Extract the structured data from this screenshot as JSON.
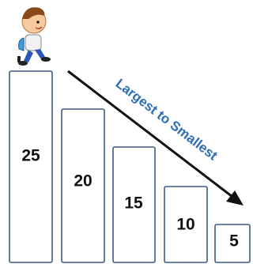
{
  "arrow_label": "Largest to Smallest",
  "steps": [
    {
      "label": "25"
    },
    {
      "label": "20"
    },
    {
      "label": "15"
    },
    {
      "label": "10"
    },
    {
      "label": "5"
    }
  ]
}
